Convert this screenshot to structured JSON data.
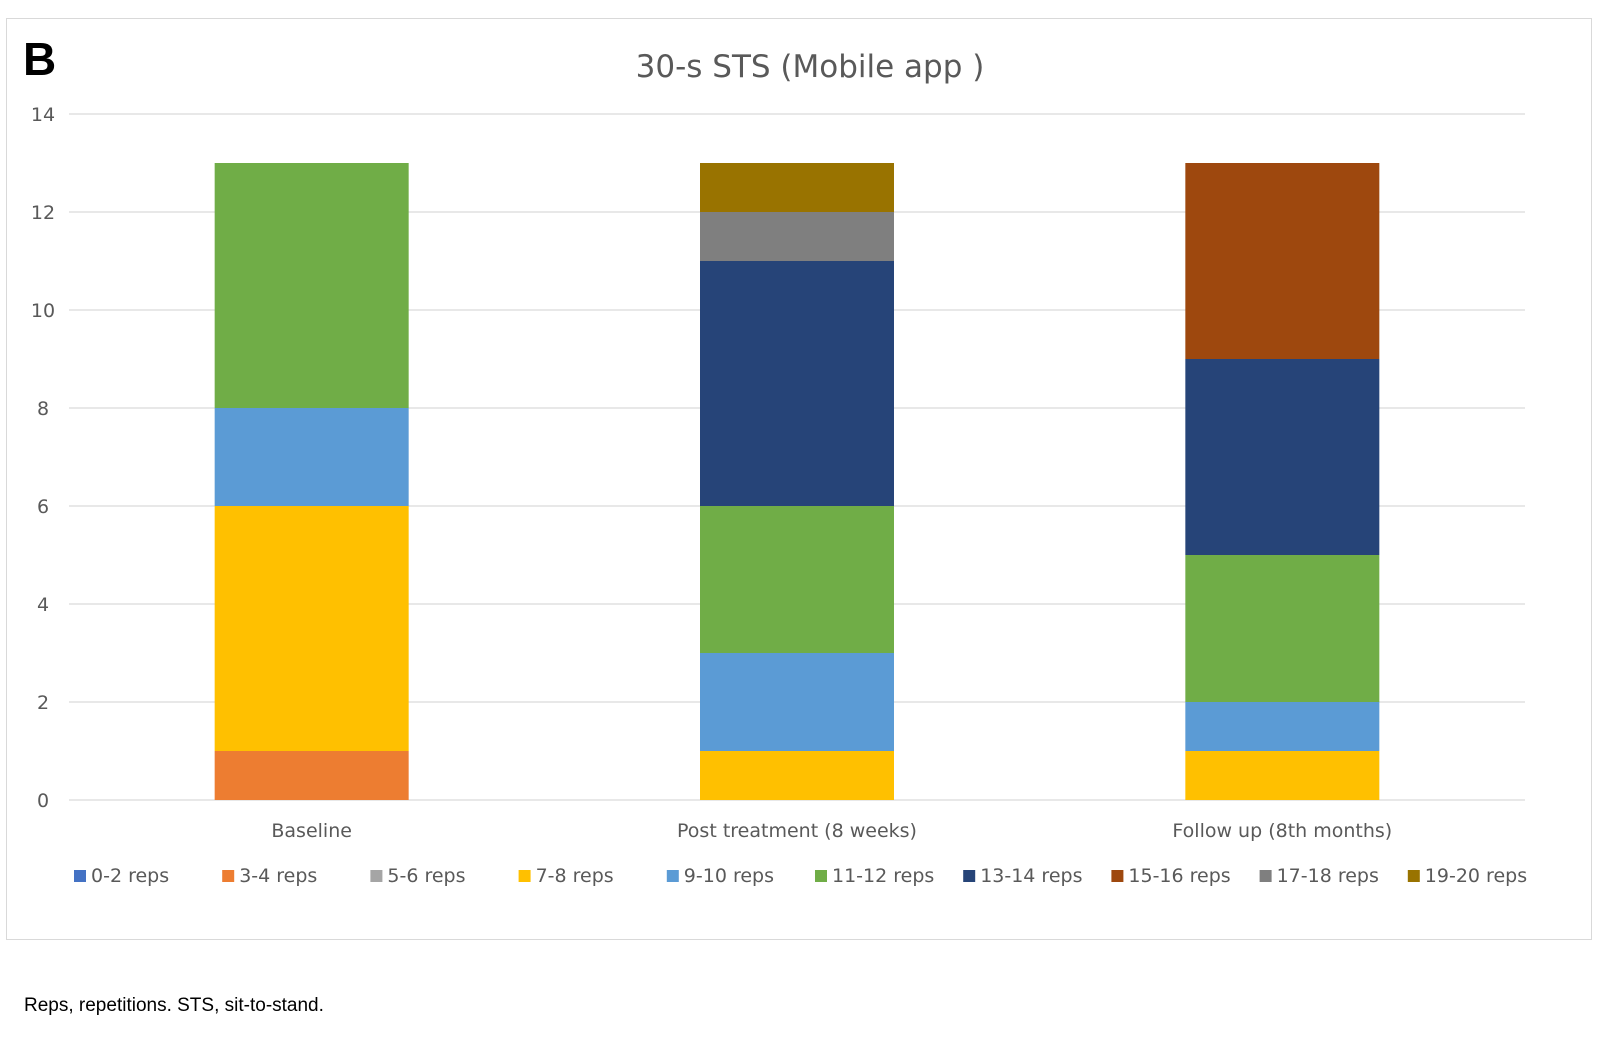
{
  "panel_label": "B",
  "caption": "Reps, repetitions. STS, sit-to-stand.",
  "chart_data": {
    "type": "bar",
    "stacked": true,
    "title": "30-s STS (Mobile app )",
    "xlabel": "",
    "ylabel": "",
    "ylim": [
      0,
      14
    ],
    "yticks": [
      0,
      2,
      4,
      6,
      8,
      10,
      12,
      14
    ],
    "grid": true,
    "legend_position": "bottom",
    "categories": [
      "Baseline",
      "Post treatment (8 weeks)",
      "Follow up (8th months)"
    ],
    "series": [
      {
        "name": "0-2 reps",
        "color": "#4472c4",
        "values": [
          0,
          0,
          0
        ]
      },
      {
        "name": "3-4 reps",
        "color": "#ed7d31",
        "values": [
          1,
          0,
          0
        ]
      },
      {
        "name": "5-6 reps",
        "color": "#a5a5a5",
        "values": [
          0,
          0,
          0
        ]
      },
      {
        "name": "7-8 reps",
        "color": "#ffc000",
        "values": [
          5,
          1,
          1
        ]
      },
      {
        "name": "9-10 reps",
        "color": "#5b9bd5",
        "values": [
          2,
          2,
          1
        ]
      },
      {
        "name": "11-12 reps",
        "color": "#70ad47",
        "values": [
          5,
          3,
          3
        ]
      },
      {
        "name": "13-14 reps",
        "color": "#264478",
        "values": [
          0,
          5,
          4
        ]
      },
      {
        "name": "15-16 reps",
        "color": "#9e480e",
        "values": [
          0,
          0,
          4
        ]
      },
      {
        "name": "17-18 reps",
        "color": "#7f7f7f",
        "values": [
          0,
          1,
          0
        ]
      },
      {
        "name": "19-20 reps",
        "color": "#997300",
        "values": [
          0,
          1,
          0
        ]
      }
    ]
  }
}
